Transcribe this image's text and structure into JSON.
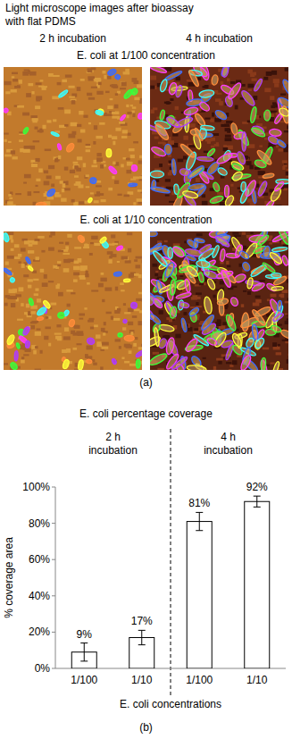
{
  "panel_a": {
    "title": [
      "Light microscope images after bioassay",
      "with flat PDMS"
    ],
    "columns": [
      "2 h incubation",
      "4 h incubation"
    ],
    "rows": [
      "E. coli at 1/100 concentration",
      "E. coli at 1/10 concentration"
    ],
    "label": "(a)"
  },
  "chart_data": {
    "type": "bar",
    "title": "E. coli percentage coverage",
    "group_labels": [
      [
        "2 h",
        "incubation"
      ],
      [
        "4 h",
        "incubation"
      ]
    ],
    "categories": [
      "1/100",
      "1/10",
      "1/100",
      "1/10"
    ],
    "values": [
      9,
      17,
      81,
      92
    ],
    "value_labels": [
      "9%",
      "17%",
      "81%",
      "92%"
    ],
    "errors": [
      5,
      4,
      5,
      3
    ],
    "color": "#ffffff",
    "data_labels": true,
    "grid": false,
    "xlabel": "E. coli concentrations",
    "ylabel": "% coverage area",
    "ylim": [
      0,
      100
    ],
    "yticks": [
      {
        "value": 0,
        "label": "0%"
      },
      {
        "value": 20,
        "label": "20%"
      },
      {
        "value": 40,
        "label": "40%"
      },
      {
        "value": 60,
        "label": "60%"
      },
      {
        "value": 80,
        "label": "80%"
      },
      {
        "value": 100,
        "label": "100%"
      }
    ],
    "label": "(b)"
  }
}
